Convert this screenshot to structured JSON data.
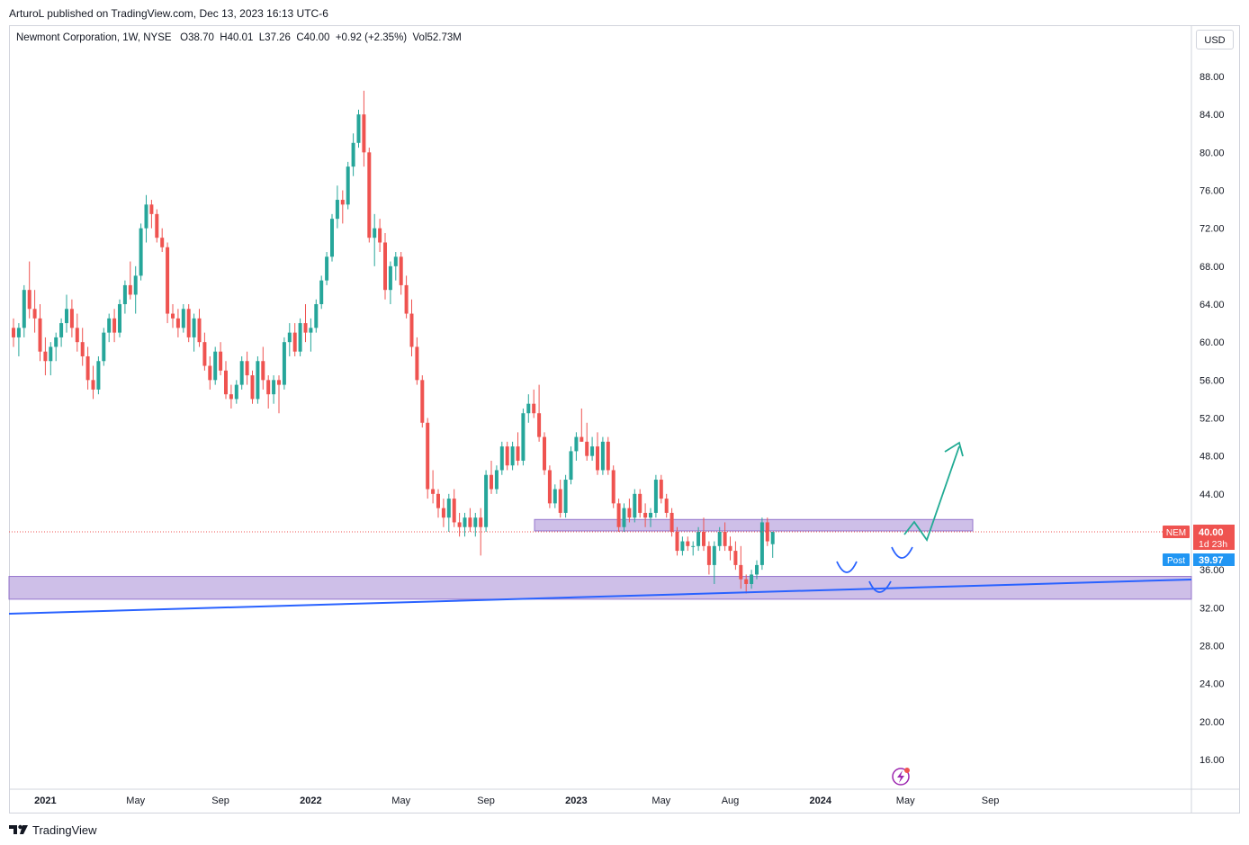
{
  "header": {
    "publish_line": "ArturoL published on TradingView.com, Dec 13, 2023 16:13 UTC-6"
  },
  "legend": {
    "symbol": "Newmont Corporation, 1W, NYSE",
    "open": "O38.70",
    "high": "H40.01",
    "low": "L37.26",
    "close": "C40.00",
    "change": "+0.92 (+2.35%)",
    "volume": "Vol52.73M"
  },
  "currency": "USD",
  "price_labels": {
    "ticker": "NEM",
    "last": "40.00",
    "countdown": "1d 23h",
    "post_label": "Post",
    "post_value": "39.97"
  },
  "footer": {
    "brand": "TradingView"
  },
  "colors": {
    "up": "#26a69a",
    "down": "#ef5350",
    "zone": "#b39ddb",
    "trend": "#2962ff",
    "projection": "#22ab94",
    "post": "#2196f3"
  },
  "chart_data": {
    "type": "candlestick",
    "title": "Newmont Corporation, 1W, NYSE",
    "ylim": [
      12,
      92
    ],
    "y_ticks": [
      "88.00",
      "84.00",
      "80.00",
      "76.00",
      "72.00",
      "68.00",
      "64.00",
      "60.00",
      "56.00",
      "52.00",
      "48.00",
      "44.00",
      "36.00",
      "32.00",
      "28.00",
      "24.00",
      "20.00",
      "16.00"
    ],
    "x_ticks": [
      {
        "label": "2021",
        "bold": true
      },
      {
        "label": "May",
        "bold": false
      },
      {
        "label": "Sep",
        "bold": false
      },
      {
        "label": "2022",
        "bold": true
      },
      {
        "label": "May",
        "bold": false
      },
      {
        "label": "Sep",
        "bold": false
      },
      {
        "label": "2023",
        "bold": true
      },
      {
        "label": "May",
        "bold": false
      },
      {
        "label": "Aug",
        "bold": false
      },
      {
        "label": "2024",
        "bold": true
      },
      {
        "label": "May",
        "bold": false
      },
      {
        "label": "Sep",
        "bold": false
      }
    ],
    "x_tick_weeks": [
      6,
      23,
      39,
      56,
      73,
      89,
      106,
      122,
      135,
      152,
      168,
      184
    ],
    "last_price": 40.0,
    "post_price": 39.97,
    "candles": [
      [
        61.5,
        62.5,
        59.5,
        60.5
      ],
      [
        60.5,
        62.0,
        58.5,
        61.5
      ],
      [
        61.5,
        66.0,
        60.5,
        65.5
      ],
      [
        65.5,
        68.5,
        62.5,
        63.5
      ],
      [
        63.5,
        65.5,
        61.0,
        62.5
      ],
      [
        62.5,
        64.0,
        58.0,
        59.0
      ],
      [
        59.0,
        60.5,
        56.5,
        58.0
      ],
      [
        58.0,
        60.0,
        56.5,
        59.5
      ],
      [
        59.5,
        61.0,
        58.0,
        60.5
      ],
      [
        60.5,
        62.5,
        59.5,
        62.0
      ],
      [
        62.0,
        65.0,
        61.0,
        63.5
      ],
      [
        63.5,
        64.5,
        60.5,
        61.5
      ],
      [
        61.5,
        63.0,
        59.0,
        60.0
      ],
      [
        60.0,
        61.5,
        57.5,
        58.5
      ],
      [
        58.5,
        59.5,
        55.0,
        56.0
      ],
      [
        56.0,
        57.5,
        54.0,
        55.0
      ],
      [
        55.0,
        58.5,
        54.5,
        58.0
      ],
      [
        58.0,
        61.5,
        57.5,
        61.0
      ],
      [
        61.0,
        63.0,
        60.0,
        62.5
      ],
      [
        62.5,
        63.5,
        60.0,
        61.0
      ],
      [
        61.0,
        64.5,
        60.5,
        64.0
      ],
      [
        64.0,
        66.5,
        63.0,
        66.0
      ],
      [
        66.0,
        68.5,
        64.5,
        65.0
      ],
      [
        65.0,
        68.0,
        63.0,
        67.0
      ],
      [
        67.0,
        72.5,
        66.5,
        72.0
      ],
      [
        72.0,
        75.5,
        70.5,
        74.5
      ],
      [
        74.5,
        75.0,
        72.0,
        73.5
      ],
      [
        73.5,
        74.0,
        70.5,
        71.0
      ],
      [
        71.0,
        72.0,
        69.5,
        70.0
      ],
      [
        70.0,
        70.5,
        62.0,
        63.0
      ],
      [
        63.0,
        64.0,
        61.5,
        62.5
      ],
      [
        62.5,
        63.5,
        60.5,
        61.5
      ],
      [
        61.5,
        64.0,
        61.0,
        63.5
      ],
      [
        63.5,
        64.0,
        60.0,
        60.5
      ],
      [
        60.5,
        63.0,
        59.0,
        62.5
      ],
      [
        62.5,
        63.5,
        59.5,
        60.0
      ],
      [
        60.0,
        61.0,
        57.0,
        57.5
      ],
      [
        57.5,
        58.5,
        55.0,
        56.0
      ],
      [
        56.0,
        59.5,
        55.5,
        59.0
      ],
      [
        59.0,
        60.0,
        56.5,
        57.0
      ],
      [
        57.0,
        58.0,
        54.0,
        54.5
      ],
      [
        54.5,
        55.5,
        53.0,
        54.0
      ],
      [
        54.0,
        56.0,
        53.5,
        55.5
      ],
      [
        55.5,
        58.5,
        55.0,
        58.0
      ],
      [
        58.0,
        59.0,
        55.5,
        56.5
      ],
      [
        56.5,
        57.0,
        53.5,
        54.0
      ],
      [
        54.0,
        58.5,
        53.5,
        58.0
      ],
      [
        58.0,
        59.5,
        55.0,
        56.0
      ],
      [
        56.0,
        56.5,
        53.0,
        54.5
      ],
      [
        54.5,
        56.5,
        53.5,
        56.0
      ],
      [
        56.0,
        56.5,
        52.5,
        55.5
      ],
      [
        55.5,
        60.5,
        55.0,
        60.0
      ],
      [
        60.0,
        62.0,
        58.5,
        61.0
      ],
      [
        61.0,
        62.0,
        58.5,
        59.0
      ],
      [
        59.0,
        62.5,
        58.5,
        62.0
      ],
      [
        62.0,
        64.0,
        60.0,
        61.0
      ],
      [
        61.0,
        62.5,
        59.0,
        61.5
      ],
      [
        61.5,
        64.5,
        61.0,
        64.0
      ],
      [
        64.0,
        67.0,
        63.5,
        66.5
      ],
      [
        66.5,
        69.5,
        66.0,
        69.0
      ],
      [
        69.0,
        73.5,
        68.5,
        73.0
      ],
      [
        73.0,
        76.5,
        72.0,
        75.0
      ],
      [
        75.0,
        76.0,
        72.5,
        74.5
      ],
      [
        74.5,
        79.0,
        74.0,
        78.5
      ],
      [
        78.5,
        82.0,
        77.5,
        81.0
      ],
      [
        81.0,
        84.5,
        80.5,
        84.0
      ],
      [
        84.0,
        86.5,
        78.5,
        80.0
      ],
      [
        80.0,
        80.5,
        70.5,
        71.0
      ],
      [
        71.0,
        73.5,
        68.0,
        72.0
      ],
      [
        72.0,
        73.0,
        69.5,
        70.5
      ],
      [
        70.5,
        71.5,
        64.5,
        65.5
      ],
      [
        65.5,
        68.5,
        64.0,
        68.0
      ],
      [
        68.0,
        69.5,
        66.5,
        69.0
      ],
      [
        69.0,
        69.5,
        65.0,
        66.0
      ],
      [
        66.0,
        67.0,
        62.5,
        63.0
      ],
      [
        63.0,
        64.5,
        58.5,
        59.5
      ],
      [
        59.5,
        60.5,
        55.5,
        56.0
      ],
      [
        56.0,
        56.5,
        51.0,
        51.5
      ],
      [
        51.5,
        52.0,
        43.5,
        44.5
      ],
      [
        44.5,
        46.5,
        43.0,
        44.0
      ],
      [
        44.0,
        44.5,
        41.5,
        42.5
      ],
      [
        42.5,
        43.5,
        40.5,
        41.5
      ],
      [
        41.5,
        44.0,
        40.0,
        43.5
      ],
      [
        43.5,
        44.5,
        40.5,
        41.0
      ],
      [
        41.0,
        42.0,
        39.5,
        40.5
      ],
      [
        40.5,
        42.0,
        39.5,
        41.5
      ],
      [
        41.5,
        42.5,
        40.0,
        40.5
      ],
      [
        40.5,
        42.0,
        39.5,
        41.5
      ],
      [
        41.5,
        42.5,
        37.5,
        40.5
      ],
      [
        40.5,
        46.5,
        40.0,
        46.0
      ],
      [
        46.0,
        47.5,
        44.0,
        44.5
      ],
      [
        44.5,
        47.0,
        44.0,
        46.5
      ],
      [
        46.5,
        49.5,
        46.0,
        49.0
      ],
      [
        49.0,
        49.5,
        46.5,
        47.0
      ],
      [
        47.0,
        49.5,
        46.5,
        49.0
      ],
      [
        49.0,
        50.5,
        47.0,
        47.5
      ],
      [
        47.5,
        53.0,
        47.0,
        52.5
      ],
      [
        52.5,
        54.5,
        51.5,
        53.5
      ],
      [
        53.5,
        55.0,
        52.0,
        52.5
      ],
      [
        52.5,
        55.5,
        49.5,
        50.0
      ],
      [
        50.0,
        50.5,
        46.0,
        46.5
      ],
      [
        46.5,
        47.0,
        42.5,
        43.0
      ],
      [
        43.0,
        45.0,
        42.5,
        44.5
      ],
      [
        44.5,
        45.5,
        41.5,
        42.0
      ],
      [
        42.0,
        46.0,
        41.5,
        45.5
      ],
      [
        45.5,
        49.0,
        45.0,
        48.5
      ],
      [
        48.5,
        50.5,
        47.5,
        50.0
      ],
      [
        50.0,
        53.0,
        49.5,
        49.5
      ],
      [
        49.5,
        51.5,
        47.5,
        48.0
      ],
      [
        48.0,
        50.0,
        47.5,
        49.0
      ],
      [
        49.0,
        50.5,
        46.0,
        46.5
      ],
      [
        46.5,
        50.0,
        46.0,
        49.5
      ],
      [
        49.5,
        50.0,
        46.0,
        46.5
      ],
      [
        46.5,
        47.0,
        42.5,
        43.0
      ],
      [
        43.0,
        43.5,
        40.0,
        40.5
      ],
      [
        40.5,
        43.0,
        40.0,
        42.5
      ],
      [
        42.5,
        43.5,
        41.0,
        41.5
      ],
      [
        41.5,
        44.5,
        41.0,
        44.0
      ],
      [
        44.0,
        44.5,
        41.5,
        42.0
      ],
      [
        42.0,
        43.0,
        40.5,
        41.5
      ],
      [
        41.5,
        42.5,
        40.5,
        42.0
      ],
      [
        42.0,
        46.0,
        41.5,
        45.5
      ],
      [
        45.5,
        46.0,
        43.0,
        43.5
      ],
      [
        43.5,
        44.0,
        41.5,
        42.0
      ],
      [
        42.0,
        42.5,
        39.5,
        40.0
      ],
      [
        40.0,
        40.5,
        37.5,
        38.0
      ],
      [
        38.0,
        39.5,
        37.5,
        39.0
      ],
      [
        39.0,
        39.5,
        38.0,
        38.5
      ],
      [
        38.5,
        39.0,
        37.5,
        38.5
      ],
      [
        38.5,
        40.5,
        38.0,
        40.0
      ],
      [
        40.0,
        41.5,
        38.0,
        38.5
      ],
      [
        38.5,
        39.0,
        35.5,
        36.5
      ],
      [
        36.5,
        39.0,
        34.5,
        38.5
      ],
      [
        38.5,
        40.5,
        38.0,
        40.0
      ],
      [
        40.0,
        41.0,
        38.0,
        38.5
      ],
      [
        38.5,
        39.5,
        37.0,
        38.0
      ],
      [
        38.0,
        39.0,
        36.0,
        36.5
      ],
      [
        36.5,
        38.5,
        34.0,
        35.0
      ],
      [
        35.0,
        35.5,
        33.5,
        34.5
      ],
      [
        34.5,
        36.0,
        34.0,
        35.5
      ],
      [
        35.5,
        37.0,
        35.0,
        36.5
      ],
      [
        36.5,
        41.5,
        36.0,
        41.0
      ],
      [
        41.0,
        41.5,
        38.5,
        39.0
      ],
      [
        38.7,
        40.01,
        37.26,
        40.0
      ]
    ]
  }
}
